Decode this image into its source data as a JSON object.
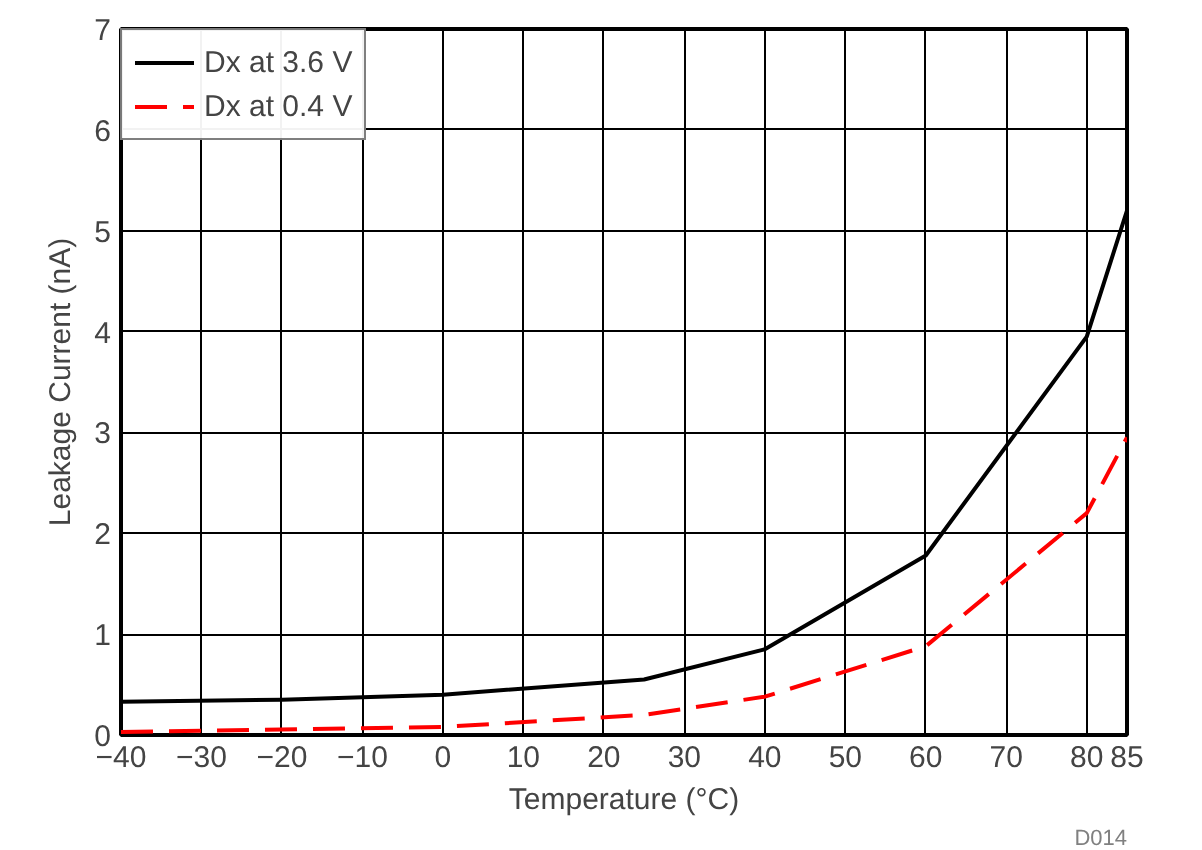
{
  "chart_data": {
    "type": "line",
    "xlabel": "Temperature (°C)",
    "ylabel": "Leakage Current (nA)",
    "annotations": [
      "D014"
    ],
    "xlim": [
      -40,
      85
    ],
    "xticks": [
      -40,
      -30,
      -20,
      -10,
      0,
      10,
      20,
      30,
      40,
      50,
      60,
      70,
      80,
      85
    ],
    "ylim": [
      0,
      7
    ],
    "yticks": [
      0,
      1,
      2,
      3,
      4,
      5,
      6,
      7
    ],
    "grid": true,
    "legend": "top left",
    "marker": "none",
    "series": [
      {
        "name": "Dx at 3.6 V",
        "color": "#000000",
        "line_style": "solid",
        "x": [
          -40,
          -20,
          0,
          25,
          40,
          60,
          80,
          85
        ],
        "values": [
          0.33,
          0.35,
          0.4,
          0.55,
          0.85,
          1.78,
          3.95,
          5.2
        ]
      },
      {
        "name": "Dx at 0.4 V",
        "color": "#ff0000",
        "line_style": "dashed",
        "x": [
          -40,
          0,
          25,
          40,
          60,
          80,
          85
        ],
        "values": [
          0.03,
          0.08,
          0.2,
          0.38,
          0.88,
          2.2,
          2.95
        ]
      }
    ]
  }
}
